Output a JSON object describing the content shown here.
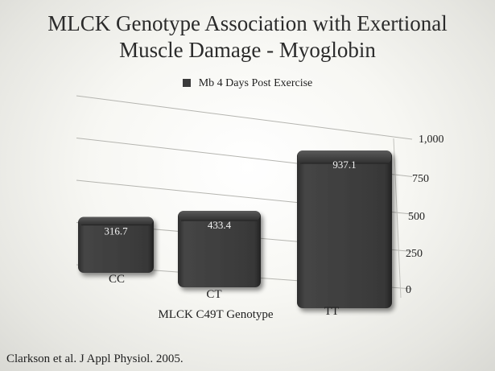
{
  "slide": {
    "title_line_1": "MLCK Genotype Association with Exertional",
    "title_line_2": "Muscle Damage - Myoglobin",
    "citation": "Clarkson et al. J Appl Physiol. 2005."
  },
  "chart_data": {
    "type": "bar",
    "title": "MLCK Genotype Association with Exertional Muscle Damage - Myoglobin",
    "xlabel": "MLCK C49T Genotype",
    "ylabel": "",
    "categories": [
      "CC",
      "CT",
      "TT"
    ],
    "series": [
      {
        "name": "Mb 4 Days Post Exercise",
        "values": [
          316.7,
          433.4,
          937.1
        ]
      }
    ],
    "data_labels": [
      "316.7",
      "433.4",
      "937.1"
    ],
    "ylim": [
      0,
      1000
    ],
    "yticks": [
      0,
      250,
      500,
      750,
      1000
    ],
    "ytick_labels": [
      "0",
      "250",
      "500",
      "750",
      "1,000"
    ],
    "grid": true,
    "legend_position": "top",
    "colors": {
      "bar": "#3d3d3d",
      "text": "#222222",
      "background": "#f4f4f0"
    }
  }
}
